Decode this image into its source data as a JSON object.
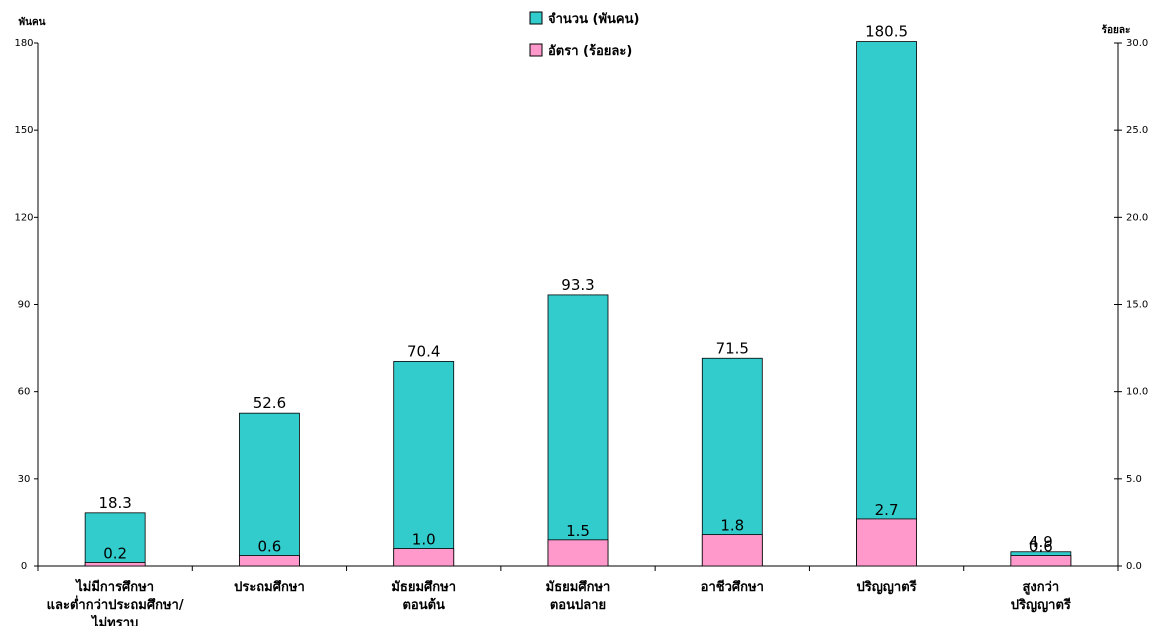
{
  "chart_data": {
    "type": "bar",
    "left_axis_title": "พันคน",
    "right_axis_title": "ร้อยละ",
    "left_ylim": [
      0,
      180
    ],
    "left_ticks": [
      "0",
      "30",
      "60",
      "90",
      "120",
      "150",
      "180"
    ],
    "right_ylim": [
      0,
      30
    ],
    "right_ticks": [
      "0.0",
      "5.0",
      "10.0",
      "15.0",
      "20.0",
      "25.0",
      "30.0"
    ],
    "grid": false,
    "legend_position": "top-center",
    "categories": [
      [
        "ไม่มีการศึกษา",
        "และต่ำกว่าประถมศึกษา/",
        "ไม่ทราบ"
      ],
      [
        "ประถมศึกษา"
      ],
      [
        "มัธยมศึกษา",
        "ตอนต้น"
      ],
      [
        "มัธยมศึกษา",
        "ตอนปลาย"
      ],
      [
        "อาชีวศึกษา"
      ],
      [
        "ปริญญาตรี"
      ],
      [
        "สูงกว่า",
        "ปริญญาตรี"
      ]
    ],
    "series": [
      {
        "name": "จำนวน (พันคน)",
        "axis": "left",
        "color": "#33CCCC",
        "values": [
          18.3,
          52.6,
          70.4,
          93.3,
          71.5,
          180.5,
          4.9
        ],
        "labels": [
          "18.3",
          "52.6",
          "70.4",
          "93.3",
          "71.5",
          "180.5",
          "4.9"
        ]
      },
      {
        "name": "อัตรา (ร้อยละ)",
        "axis": "right",
        "color": "#FF99CC",
        "values": [
          0.2,
          0.6,
          1.0,
          1.5,
          1.8,
          2.7,
          0.6
        ],
        "labels": [
          "0.2",
          "0.6",
          "1.0",
          "1.5",
          "1.8",
          "2.7",
          "0.6"
        ]
      }
    ]
  }
}
